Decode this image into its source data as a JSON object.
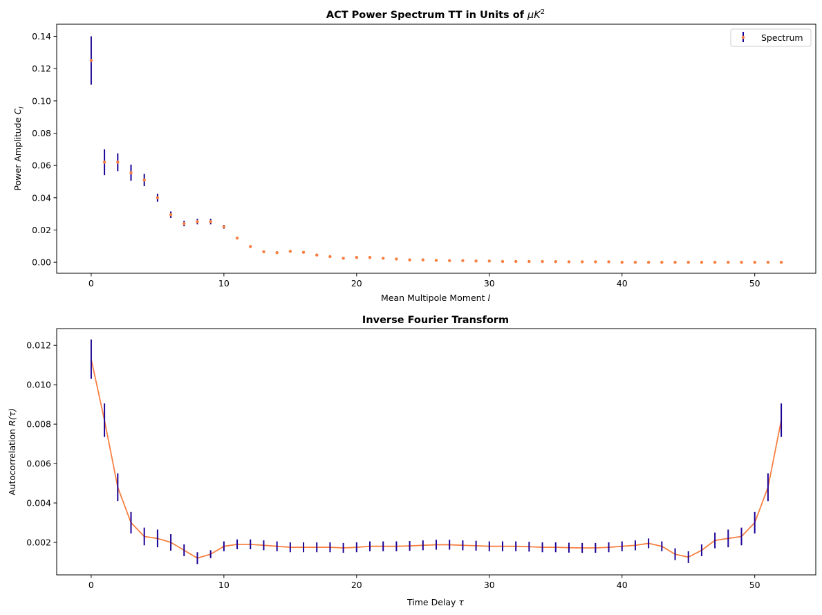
{
  "colors": {
    "marker": "#f77f40",
    "errorbar": "#1c0096",
    "line": "#f77f40",
    "axes": "#000000",
    "legend_border": "#cccccc"
  },
  "chart_data": [
    {
      "type": "scatter",
      "title": "ACT Power Spectrum TT in Units of μK²",
      "title_parts": {
        "text": "ACT Power Spectrum TT in Units of ",
        "math": "μK",
        "sup": "2"
      },
      "xlabel": "Mean Multipole Moment l",
      "xlabel_parts": {
        "text": "Mean Multipole Moment ",
        "math": "l"
      },
      "ylabel": "Power Amplitude C_l",
      "ylabel_parts": {
        "text": "Power Amplitude ",
        "math": "C",
        "sub": "l"
      },
      "xlim": [
        -2.6,
        54.6
      ],
      "ylim": [
        -0.0068,
        0.1475
      ],
      "xticks": [
        0,
        10,
        20,
        30,
        40,
        50
      ],
      "xtick_labels": [
        "0",
        "10",
        "20",
        "30",
        "40",
        "50"
      ],
      "yticks": [
        0.0,
        0.02,
        0.04,
        0.06,
        0.08,
        0.1,
        0.12,
        0.14
      ],
      "ytick_labels": [
        "0.00",
        "0.02",
        "0.04",
        "0.06",
        "0.08",
        "0.10",
        "0.12",
        "0.14"
      ],
      "grid": false,
      "legend": {
        "position": "top-right",
        "entries": [
          "Spectrum"
        ]
      },
      "series": [
        {
          "name": "Spectrum",
          "style": "markers+errorbars",
          "x": [
            0,
            1,
            2,
            3,
            4,
            5,
            6,
            7,
            8,
            9,
            10,
            11,
            12,
            13,
            14,
            15,
            16,
            17,
            18,
            19,
            20,
            21,
            22,
            23,
            24,
            25,
            26,
            27,
            28,
            29,
            30,
            31,
            32,
            33,
            34,
            35,
            36,
            37,
            38,
            39,
            40,
            41,
            42,
            43,
            44,
            45,
            46,
            47,
            48,
            49,
            50,
            51,
            52
          ],
          "y": [
            0.125,
            0.062,
            0.062,
            0.0555,
            0.051,
            0.04,
            0.0295,
            0.024,
            0.0252,
            0.0252,
            0.022,
            0.015,
            0.0098,
            0.0065,
            0.006,
            0.0068,
            0.0062,
            0.0045,
            0.0035,
            0.0025,
            0.003,
            0.003,
            0.0025,
            0.002,
            0.0015,
            0.0015,
            0.0012,
            0.001,
            0.001,
            0.0008,
            0.0008,
            0.0005,
            0.0005,
            0.0005,
            0.0005,
            0.0004,
            0.0003,
            0.0003,
            0.0003,
            0.0003,
            0.0,
            0.0,
            0.0,
            0.0,
            0.0,
            0.0,
            0.0,
            0.0,
            0.0,
            0.0,
            0.0,
            0.0,
            0.0
          ],
          "yerr": [
            0.015,
            0.008,
            0.0055,
            0.005,
            0.0038,
            0.0025,
            0.002,
            0.0017,
            0.0017,
            0.0017,
            0.0012,
            0,
            0,
            0,
            0,
            0,
            0,
            0,
            0,
            0,
            0,
            0,
            0,
            0,
            0,
            0,
            0,
            0,
            0,
            0,
            0,
            0,
            0,
            0,
            0,
            0,
            0,
            0,
            0,
            0,
            0,
            0,
            0,
            0,
            0,
            0,
            0,
            0,
            0,
            0,
            0,
            0,
            0
          ]
        }
      ]
    },
    {
      "type": "line",
      "title": "Inverse Fourier Transform",
      "xlabel": "Time Delay τ",
      "xlabel_parts": {
        "text": "Time Delay ",
        "math": "τ"
      },
      "ylabel": "Autocorrelation R(τ)",
      "ylabel_parts": {
        "text": "Autocorrelation ",
        "math": "R(τ)"
      },
      "xlim": [
        -2.6,
        54.6
      ],
      "ylim": [
        0.00035,
        0.01285
      ],
      "xticks": [
        0,
        10,
        20,
        30,
        40,
        50
      ],
      "xtick_labels": [
        "0",
        "10",
        "20",
        "30",
        "40",
        "50"
      ],
      "yticks": [
        0.002,
        0.004,
        0.006,
        0.008,
        0.01,
        0.012
      ],
      "ytick_labels": [
        "0.002",
        "0.004",
        "0.006",
        "0.008",
        "0.010",
        "0.012"
      ],
      "grid": false,
      "series": [
        {
          "style": "line+errorbars",
          "x": [
            0,
            1,
            2,
            3,
            4,
            5,
            6,
            7,
            8,
            9,
            10,
            11,
            12,
            13,
            14,
            15,
            16,
            17,
            18,
            19,
            20,
            21,
            22,
            23,
            24,
            25,
            26,
            27,
            28,
            29,
            30,
            31,
            32,
            33,
            34,
            35,
            36,
            37,
            38,
            39,
            40,
            41,
            42,
            43,
            44,
            45,
            46,
            47,
            48,
            49,
            50,
            51,
            52
          ],
          "y": [
            0.0113,
            0.0082,
            0.0048,
            0.003,
            0.0023,
            0.0022,
            0.002,
            0.0016,
            0.0012,
            0.0014,
            0.0018,
            0.0019,
            0.0019,
            0.00185,
            0.0018,
            0.00175,
            0.00175,
            0.00175,
            0.00175,
            0.00172,
            0.00175,
            0.0018,
            0.0018,
            0.0018,
            0.00182,
            0.00185,
            0.00188,
            0.00188,
            0.00185,
            0.00183,
            0.0018,
            0.0018,
            0.0018,
            0.00178,
            0.00175,
            0.00175,
            0.00173,
            0.00172,
            0.00172,
            0.00175,
            0.0018,
            0.00185,
            0.00195,
            0.0018,
            0.0014,
            0.00125,
            0.0016,
            0.0021,
            0.0022,
            0.0023,
            0.003,
            0.0048,
            0.0082
          ],
          "yerr": [
            0.001,
            0.00085,
            0.0007,
            0.00055,
            0.00045,
            0.00045,
            0.00042,
            0.0003,
            0.0003,
            0.0002,
            0.00025,
            0.00025,
            0.00025,
            0.00025,
            0.00025,
            0.00025,
            0.00025,
            0.00025,
            0.00025,
            0.00025,
            0.00025,
            0.00025,
            0.00025,
            0.00025,
            0.00025,
            0.00025,
            0.00025,
            0.00025,
            0.00025,
            0.00025,
            0.00025,
            0.00025,
            0.00025,
            0.00025,
            0.00025,
            0.00025,
            0.00025,
            0.00025,
            0.00025,
            0.00025,
            0.00025,
            0.00025,
            0.00025,
            0.00025,
            0.0003,
            0.0003,
            0.0003,
            0.0004,
            0.00045,
            0.00045,
            0.00055,
            0.0007,
            0.00085
          ]
        }
      ]
    }
  ]
}
